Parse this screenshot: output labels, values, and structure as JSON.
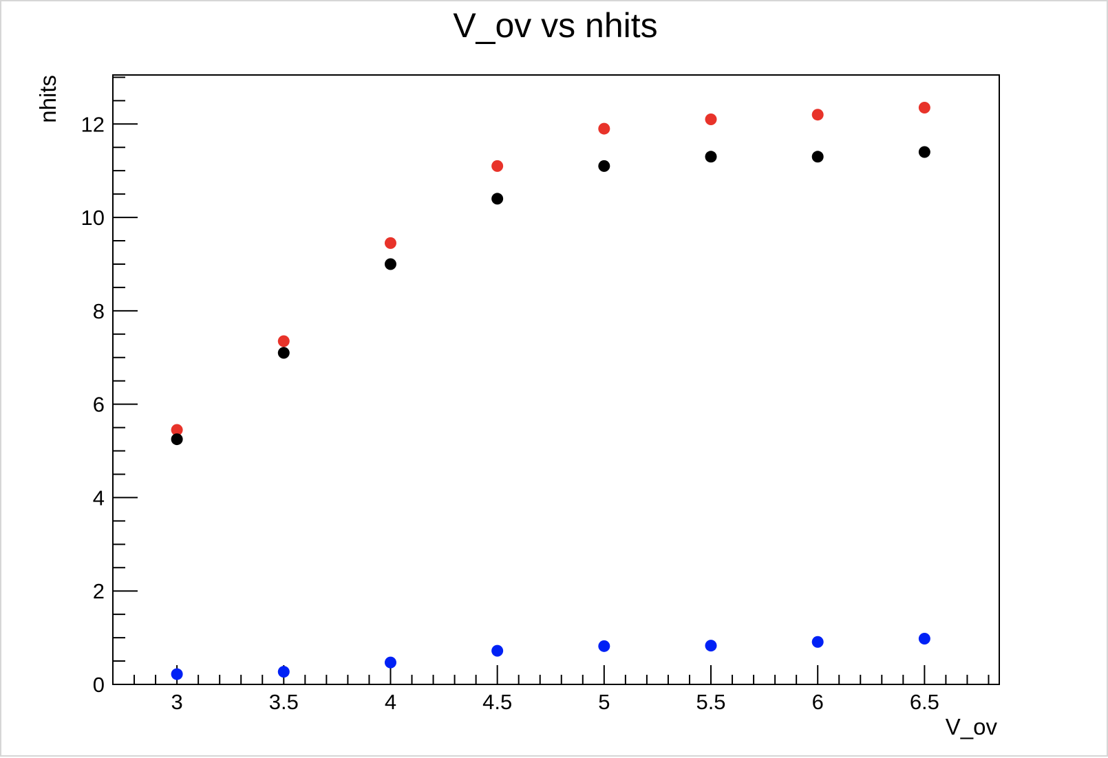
{
  "chart_data": {
    "type": "scatter",
    "title": "V_ov vs nhits",
    "xlabel": "V_ov",
    "ylabel": "nhits",
    "xlim": [
      2.7,
      6.85
    ],
    "ylim": [
      0,
      13.05
    ],
    "x_ticks": [
      "3",
      "3.5",
      "4",
      "4.5",
      "5",
      "5.5",
      "6",
      "6.5"
    ],
    "y_ticks": [
      "0",
      "2",
      "4",
      "6",
      "8",
      "10",
      "12"
    ],
    "x_minor_step": 0.1,
    "y_minor_step": 0.5,
    "grid": false,
    "x": [
      3,
      3.5,
      4,
      4.5,
      5,
      5.5,
      6,
      6.5
    ],
    "series": [
      {
        "color": "#e8332a",
        "values": [
          5.45,
          7.35,
          9.45,
          11.1,
          11.9,
          12.1,
          12.2,
          12.35
        ]
      },
      {
        "color": "#000000",
        "values": [
          5.25,
          7.1,
          9.0,
          10.4,
          11.1,
          11.3,
          11.3,
          11.4
        ]
      },
      {
        "color": "#0021f5",
        "values": [
          0.22,
          0.27,
          0.47,
          0.72,
          0.82,
          0.83,
          0.91,
          0.98
        ]
      }
    ]
  }
}
